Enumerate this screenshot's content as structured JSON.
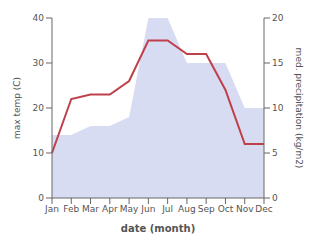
{
  "chart_data": {
    "type": "line",
    "xlabel": "date (month)",
    "ylabel": "max temp (C)",
    "y2label": "med. precipitation (kg/m2)",
    "categories": [
      "Jan",
      "Feb",
      "Mar",
      "Apr",
      "May",
      "Jun",
      "Jul",
      "Aug",
      "Sep",
      "Oct",
      "Nov",
      "Dec"
    ],
    "series": [
      {
        "type": "area",
        "axis": "y2",
        "color": "#b8c0e8",
        "values": [
          7,
          7,
          8,
          8,
          9,
          20,
          20,
          15,
          15,
          15,
          10,
          10
        ]
      },
      {
        "type": "line",
        "color": "#c0404a",
        "values": [
          10,
          22,
          23,
          23,
          26,
          35,
          35,
          32,
          32,
          24,
          12,
          12
        ]
      }
    ],
    "ylim": [
      0,
      40
    ],
    "yticks": [
      0,
      10,
      20,
      30,
      40
    ],
    "y2lim": [
      0,
      20
    ],
    "y2ticks": [
      0,
      5,
      10,
      15,
      20
    ],
    "grid": false
  }
}
